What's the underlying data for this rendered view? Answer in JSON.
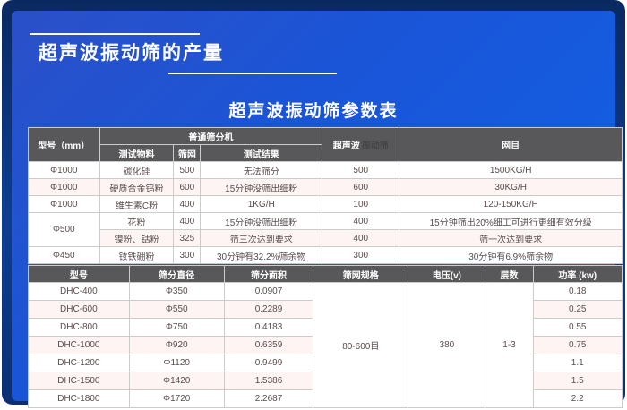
{
  "page": {
    "title": "超声波振动筛的产量",
    "subtitle": "超声波振动筛参数表"
  },
  "colors": {
    "card_navy": "#0a2961",
    "panel_blue_start": "#2b50c8",
    "panel_blue_end": "#0f62e8",
    "header_gray": "#58585a",
    "stripe_pink": "#fdf4f3",
    "border_gray": "#cbcbcb"
  },
  "table1": {
    "header": {
      "model": "型号（mm）",
      "group": "普通筛分机",
      "sub": [
        "测试物料",
        "筛网",
        "测试结果"
      ],
      "ultrasonic_prefix": "超声波",
      "ultrasonic_watermark": "振动筛",
      "mesh": "网目"
    },
    "rows": [
      [
        {
          "text": "Φ1000"
        },
        {
          "text": "碳化硅"
        },
        {
          "text": "500"
        },
        {
          "text": "无法筛分"
        },
        {
          "text": "500"
        },
        {
          "text": "1500KG/H"
        }
      ],
      [
        {
          "text": "Φ1000"
        },
        {
          "text": "硬质合金钨粉"
        },
        {
          "text": "600"
        },
        {
          "text": "15分钟没筛出细粉"
        },
        {
          "text": "600"
        },
        {
          "text": "30KG/H"
        }
      ],
      [
        {
          "text": "Φ1000"
        },
        {
          "text": "维生素C粉"
        },
        {
          "text": "400"
        },
        {
          "text": "1KG/H"
        },
        {
          "text": "100"
        },
        {
          "text": "120-150KG/H"
        }
      ],
      [
        {
          "text": "Φ500",
          "rowspan": 2
        },
        {
          "text": "花粉"
        },
        {
          "text": "400"
        },
        {
          "text": "15分钟没筛出细粉"
        },
        {
          "text": "400"
        },
        {
          "text": "15分钟筛出20%细工可进行更细有效分级"
        }
      ],
      [
        {
          "text": "镍粉、钴粉"
        },
        {
          "text": "325"
        },
        {
          "text": "筛三次达到要求"
        },
        {
          "text": "400"
        },
        {
          "text": "筛一次达到要求"
        }
      ],
      [
        {
          "text": "Φ450"
        },
        {
          "text": "钕铁硼粉"
        },
        {
          "text": "300"
        },
        {
          "text": "30分钟有32.2%筛余物"
        },
        {
          "text": "300"
        },
        {
          "text": "30分钟有6.9%筛余物"
        }
      ]
    ]
  },
  "table2": {
    "headers": [
      "型号",
      "筛分直径",
      "筛分面积",
      "筛网规格",
      "电压(v)",
      "层数",
      "功率 (kw)"
    ],
    "rows": [
      [
        {
          "text": "DHC-400"
        },
        {
          "text": "Φ350"
        },
        {
          "text": "0.0907"
        },
        {
          "text": "80-600目",
          "rowspan": 7
        },
        {
          "text": "380",
          "rowspan": 7
        },
        {
          "text": "1-3",
          "rowspan": 7
        },
        {
          "text": "0.18"
        }
      ],
      [
        {
          "text": "DHC-600"
        },
        {
          "text": "Φ550"
        },
        {
          "text": "0.2289"
        },
        {
          "text": "0.25"
        }
      ],
      [
        {
          "text": "DHC-800"
        },
        {
          "text": "Φ750"
        },
        {
          "text": "0.4183"
        },
        {
          "text": "0.55"
        }
      ],
      [
        {
          "text": "DHC-1000"
        },
        {
          "text": "Φ920"
        },
        {
          "text": "0.6359"
        },
        {
          "text": "0.75"
        }
      ],
      [
        {
          "text": "DHC-1200"
        },
        {
          "text": "Φ1120"
        },
        {
          "text": "0.9499"
        },
        {
          "text": "1.1"
        }
      ],
      [
        {
          "text": "DHC-1500"
        },
        {
          "text": "Φ1420"
        },
        {
          "text": "1.5386"
        },
        {
          "text": "1.5"
        }
      ],
      [
        {
          "text": "DHC-1800"
        },
        {
          "text": "Φ1720"
        },
        {
          "text": "2.2687"
        },
        {
          "text": "2.2"
        }
      ]
    ]
  }
}
